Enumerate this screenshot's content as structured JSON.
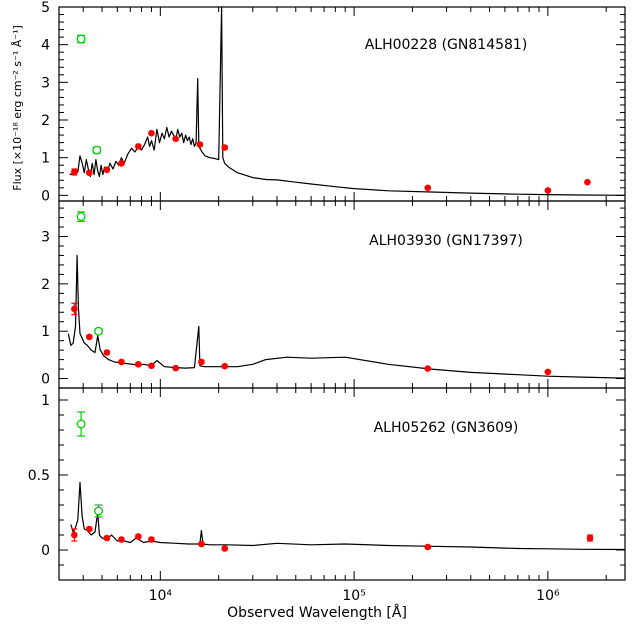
{
  "figure": {
    "xlabel": "Observed Wavelength [Å]",
    "ylabel": "Flux [×10⁻¹⁸ erg cm⁻² s⁻¹ Å⁻¹]"
  },
  "colors": {
    "photometry": "#ff0000",
    "upper_points": "#00cc00",
    "model": "#000000"
  },
  "chart_data": [
    {
      "type": "line",
      "title": "ALH00228 (GN814581)",
      "xscale": "log",
      "xlim": [
        3000,
        2500000
      ],
      "ylim": [
        -0.15,
        5
      ],
      "yticks": [
        0,
        1,
        2,
        3,
        4,
        5
      ],
      "xticks": [
        10000,
        100000,
        1000000
      ],
      "xtick_labels": [
        "10⁴",
        "10⁵",
        "10⁶"
      ],
      "model_sed": {
        "x": [
          3400,
          3550,
          3650,
          3750,
          3850,
          3950,
          4050,
          4150,
          4250,
          4350,
          4450,
          4550,
          4650,
          4750,
          4850,
          4950,
          5050,
          5150,
          5300,
          5500,
          5700,
          5900,
          6100,
          6300,
          6500,
          6800,
          7100,
          7400,
          7700,
          8000,
          8300,
          8600,
          8800,
          9000,
          9300,
          9600,
          9900,
          10200,
          10500,
          10800,
          11100,
          11400,
          11700,
          12000,
          12300,
          12600,
          12900,
          13200,
          13500,
          13800,
          14100,
          14400,
          14700,
          15000,
          15300,
          15600,
          15800,
          16000,
          16400,
          17000,
          18000,
          19000,
          20000,
          20700,
          21000,
          21500,
          22500,
          25000,
          30000,
          35000,
          40000,
          50000,
          60000,
          80000,
          100000,
          150000,
          250000,
          400000,
          700000,
          1000000,
          1500000,
          2500000
        ],
        "y": [
          0.55,
          0.58,
          0.7,
          0.62,
          1.05,
          0.85,
          0.6,
          0.95,
          0.7,
          0.5,
          0.85,
          0.55,
          0.95,
          0.65,
          0.5,
          0.8,
          0.55,
          0.75,
          0.6,
          0.85,
          0.7,
          0.9,
          0.8,
          1.0,
          0.85,
          1.1,
          1.25,
          1.15,
          1.3,
          1.2,
          1.35,
          1.55,
          1.3,
          1.45,
          1.2,
          1.75,
          1.4,
          1.65,
          1.5,
          1.8,
          1.55,
          1.7,
          1.6,
          1.45,
          1.75,
          1.55,
          1.65,
          1.4,
          1.6,
          1.45,
          1.55,
          1.35,
          1.5,
          1.3,
          1.4,
          3.1,
          1.35,
          1.25,
          1.15,
          1.05,
          1.0,
          0.98,
          0.95,
          5.0,
          1.0,
          0.85,
          0.75,
          0.6,
          0.47,
          0.42,
          0.41,
          0.35,
          0.3,
          0.23,
          0.18,
          0.12,
          0.09,
          0.06,
          0.03,
          0.02,
          0.01,
          0.0
        ]
      },
      "photometry": {
        "x": [
          3600,
          4300,
          5300,
          6300,
          7700,
          9000,
          12000,
          16000,
          21500,
          240000,
          1000000,
          1600000
        ],
        "y": [
          0.62,
          0.6,
          0.68,
          0.85,
          1.3,
          1.65,
          1.5,
          1.35,
          1.27,
          0.2,
          0.13,
          0.35
        ],
        "yerr": [
          0.08,
          0.03,
          0.03,
          0.03,
          0.03,
          0.03,
          0.03,
          0.04,
          0.04,
          0.02,
          0.02,
          0.02
        ]
      },
      "open_points": {
        "x": [
          3900,
          4700
        ],
        "y": [
          4.15,
          1.2
        ],
        "yerr": [
          0.1,
          0.08
        ]
      }
    },
    {
      "type": "line",
      "title": "ALH03930 (GN17397)",
      "xscale": "log",
      "xlim": [
        3000,
        2500000
      ],
      "ylim": [
        -0.2,
        3.75
      ],
      "yticks": [
        0,
        1,
        2,
        3
      ],
      "xticks": [
        10000,
        100000,
        1000000
      ],
      "xtick_labels": [
        "10⁴",
        "10⁵",
        "10⁶"
      ],
      "model_sed": {
        "x": [
          3350,
          3450,
          3550,
          3650,
          3720,
          3780,
          3850,
          3950,
          4050,
          4200,
          4400,
          4600,
          4750,
          4900,
          5100,
          5400,
          5800,
          6300,
          6900,
          7500,
          8200,
          9000,
          9600,
          10500,
          12000,
          13500,
          15000,
          15800,
          16000,
          16300,
          17000,
          20000,
          25000,
          30000,
          35000,
          45000,
          60000,
          90000,
          150000,
          250000,
          400000,
          700000,
          1000000,
          1500000,
          2500000
        ],
        "y": [
          0.95,
          0.7,
          0.75,
          1.1,
          2.6,
          1.5,
          0.95,
          0.85,
          0.75,
          0.7,
          0.6,
          0.55,
          0.9,
          0.6,
          0.48,
          0.4,
          0.35,
          0.33,
          0.31,
          0.29,
          0.3,
          0.27,
          0.38,
          0.25,
          0.23,
          0.22,
          0.23,
          1.1,
          0.27,
          0.26,
          0.25,
          0.25,
          0.25,
          0.3,
          0.4,
          0.45,
          0.43,
          0.45,
          0.3,
          0.2,
          0.13,
          0.08,
          0.05,
          0.03,
          0.01
        ]
      },
      "photometry": {
        "x": [
          3600,
          4300,
          5300,
          6300,
          7700,
          9000,
          12000,
          16300,
          21500,
          240000,
          1000000
        ],
        "y": [
          1.47,
          0.88,
          0.55,
          0.35,
          0.3,
          0.27,
          0.22,
          0.35,
          0.26,
          0.21,
          0.14
        ],
        "yerr": [
          0.12,
          0.03,
          0.03,
          0.03,
          0.03,
          0.03,
          0.03,
          0.03,
          0.03,
          0.02,
          0.02
        ]
      },
      "open_points": {
        "x": [
          3900,
          4800
        ],
        "y": [
          3.42,
          1.0
        ],
        "yerr": [
          0.1,
          0.05
        ]
      }
    },
    {
      "type": "line",
      "title": "ALH05262 (GN3609)",
      "xscale": "log",
      "xlim": [
        3000,
        2500000
      ],
      "ylim": [
        -0.2,
        1.08
      ],
      "yticks": [
        0,
        0.5,
        1
      ],
      "ytick_labels": [
        "0",
        "0.5",
        "1"
      ],
      "xticks": [
        10000,
        100000,
        1000000
      ],
      "xtick_labels": [
        "10⁴",
        "10⁵",
        "10⁶"
      ],
      "model_sed": {
        "x": [
          3450,
          3550,
          3650,
          3750,
          3850,
          3950,
          4050,
          4200,
          4400,
          4600,
          4750,
          4850,
          5000,
          5300,
          5600,
          6000,
          6500,
          7000,
          7500,
          8200,
          9000,
          10000,
          12000,
          14000,
          16000,
          16300,
          16600,
          18000,
          22000,
          30000,
          40000,
          60000,
          90000,
          150000,
          250000,
          400000,
          700000,
          1000000,
          1500000,
          2500000
        ],
        "y": [
          0.17,
          0.12,
          0.15,
          0.2,
          0.45,
          0.22,
          0.14,
          0.13,
          0.1,
          0.12,
          0.25,
          0.1,
          0.08,
          0.07,
          0.1,
          0.06,
          0.06,
          0.05,
          0.08,
          0.05,
          0.06,
          0.05,
          0.045,
          0.04,
          0.04,
          0.13,
          0.04,
          0.035,
          0.035,
          0.03,
          0.045,
          0.035,
          0.04,
          0.03,
          0.025,
          0.02,
          0.01,
          0.008,
          0.005,
          0.003
        ]
      },
      "photometry": {
        "x": [
          3600,
          4300,
          5300,
          6300,
          7700,
          9000,
          16300,
          21500,
          240000,
          1650000
        ],
        "y": [
          0.1,
          0.14,
          0.08,
          0.07,
          0.09,
          0.07,
          0.04,
          0.01,
          0.02,
          0.08
        ],
        "yerr": [
          0.04,
          0.01,
          0.01,
          0.01,
          0.01,
          0.01,
          0.01,
          0.01,
          0.01,
          0.02
        ]
      },
      "open_points": {
        "x": [
          3900,
          4800
        ],
        "y": [
          0.84,
          0.26
        ],
        "yerr": [
          0.08,
          0.04
        ]
      }
    }
  ]
}
